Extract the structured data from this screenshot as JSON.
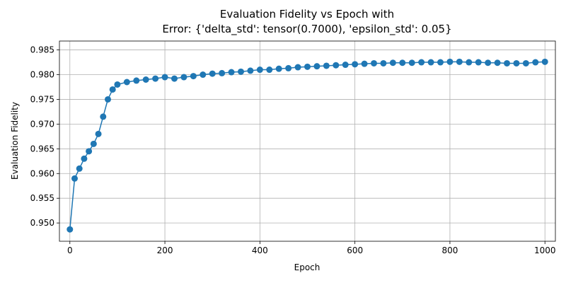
{
  "chart_data": {
    "type": "line",
    "title_line1": "Evaluation Fidelity vs Epoch with",
    "title_line2": "Error: {'delta_std': tensor(0.7000), 'epsilon_std': 0.05}",
    "xlabel": "Epoch",
    "ylabel": "Evaluation Fidelity",
    "xlim": [
      -22,
      1022
    ],
    "ylim": [
      0.9463,
      0.9868
    ],
    "xticks": [
      0,
      200,
      400,
      600,
      800,
      1000
    ],
    "yticks": [
      0.95,
      0.955,
      0.96,
      0.965,
      0.97,
      0.975,
      0.98,
      0.985
    ],
    "xtick_labels": [
      "0",
      "200",
      "400",
      "600",
      "800",
      "1000"
    ],
    "ytick_labels": [
      "0.950",
      "0.955",
      "0.960",
      "0.965",
      "0.970",
      "0.975",
      "0.980",
      "0.985"
    ],
    "grid": true,
    "marker": "circle",
    "color": "#1f77b4",
    "series": [
      {
        "name": "",
        "x": [
          0,
          10,
          20,
          30,
          40,
          50,
          60,
          70,
          80,
          90,
          100,
          120,
          140,
          160,
          180,
          200,
          220,
          240,
          260,
          280,
          300,
          320,
          340,
          360,
          380,
          400,
          420,
          440,
          460,
          480,
          500,
          520,
          540,
          560,
          580,
          600,
          620,
          640,
          660,
          680,
          700,
          720,
          740,
          760,
          780,
          800,
          820,
          840,
          860,
          880,
          900,
          920,
          940,
          960,
          980,
          1000
        ],
        "y": [
          0.9487,
          0.959,
          0.961,
          0.963,
          0.9645,
          0.966,
          0.968,
          0.9715,
          0.975,
          0.977,
          0.978,
          0.9785,
          0.9788,
          0.979,
          0.9792,
          0.9795,
          0.9792,
          0.9795,
          0.9797,
          0.98,
          0.9802,
          0.9803,
          0.9805,
          0.9806,
          0.9808,
          0.981,
          0.981,
          0.9812,
          0.9813,
          0.9815,
          0.9816,
          0.9817,
          0.9818,
          0.9819,
          0.982,
          0.9821,
          0.9822,
          0.9823,
          0.9823,
          0.9824,
          0.9824,
          0.9824,
          0.9825,
          0.9825,
          0.9825,
          0.9826,
          0.9826,
          0.9825,
          0.9825,
          0.9824,
          0.9824,
          0.9823,
          0.9823,
          0.9823,
          0.9825,
          0.9826
        ]
      }
    ]
  }
}
